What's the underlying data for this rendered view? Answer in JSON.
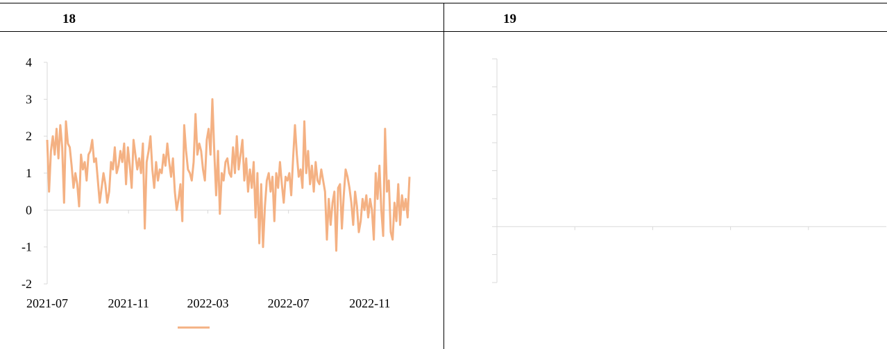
{
  "panels": [
    {
      "title": "18"
    },
    {
      "title": "19"
    }
  ],
  "chart_data": [
    {
      "type": "line",
      "title": "",
      "xlabel": "",
      "ylabel": "",
      "ylim": [
        -2,
        4
      ],
      "yticks": [
        "-2",
        "-1",
        "0",
        "1",
        "2",
        "3",
        "4"
      ],
      "xticks": [
        "2021-07",
        "2021-11",
        "2022-03",
        "2022-07",
        "2022-11"
      ],
      "xlim": [
        "2021-07-01",
        "2022-12-31"
      ],
      "legend": "bottom-center",
      "series": [
        {
          "color": "#f4b183",
          "x_start": "2021-07-01",
          "x_end": "2022-12-31",
          "values": [
            1.9,
            0.5,
            1.6,
            2.0,
            1.5,
            2.2,
            1.4,
            2.3,
            1.7,
            0.2,
            2.4,
            1.8,
            1.7,
            1.2,
            0.6,
            1.0,
            0.7,
            0.1,
            1.5,
            1.1,
            1.3,
            0.8,
            1.5,
            1.6,
            1.9,
            1.3,
            1.4,
            0.8,
            0.2,
            0.6,
            1.0,
            0.7,
            0.2,
            0.5,
            1.3,
            1.1,
            1.7,
            1.0,
            1.2,
            1.6,
            1.3,
            1.8,
            0.7,
            1.7,
            1.2,
            0.6,
            1.9,
            1.5,
            1.1,
            1.4,
            1.0,
            1.8,
            -0.5,
            1.3,
            1.6,
            2.0,
            1.1,
            0.6,
            1.3,
            0.8,
            1.1,
            1.0,
            1.5,
            1.2,
            1.8,
            1.3,
            0.9,
            1.4,
            0.5,
            0.0,
            0.3,
            0.7,
            -0.3,
            2.3,
            1.6,
            1.1,
            1.0,
            0.8,
            1.3,
            2.6,
            1.5,
            1.8,
            1.6,
            1.1,
            0.8,
            1.9,
            2.2,
            1.5,
            3.0,
            1.6,
            0.4,
            1.6,
            -0.1,
            1.0,
            0.8,
            1.3,
            1.4,
            1.0,
            0.9,
            1.7,
            1.0,
            2.0,
            1.1,
            1.5,
            1.9,
            0.8,
            1.4,
            0.5,
            1.1,
            0.6,
            1.3,
            -0.2,
            1.0,
            -0.9,
            0.7,
            -1.0,
            0.1,
            0.8,
            1.0,
            0.5,
            0.9,
            -0.3,
            1.0,
            0.6,
            1.3,
            0.7,
            0.2,
            0.9,
            0.8,
            1.0,
            0.4,
            1.4,
            2.3,
            1.5,
            0.9,
            1.1,
            0.6,
            2.4,
            1.0,
            1.6,
            0.7,
            1.2,
            0.5,
            1.3,
            0.8,
            0.7,
            1.1,
            0.8,
            0.5,
            -0.8,
            0.3,
            -0.4,
            0.2,
            0.5,
            -1.1,
            0.6,
            0.7,
            -0.5,
            0.4,
            1.1,
            0.9,
            0.6,
            0.2,
            -0.4,
            0.5,
            0.1,
            -0.6,
            -0.3,
            0.3,
            0.0,
            0.4,
            -0.2,
            0.3,
            0.0,
            -0.8,
            1.0,
            0.3,
            1.2,
            0.0,
            -0.7,
            2.2,
            0.5,
            0.8,
            -0.6,
            -0.8,
            0.2,
            -0.3,
            0.7,
            -0.4,
            0.4,
            0.0,
            0.3,
            -0.2,
            0.9
          ]
        }
      ]
    },
    {
      "type": "line",
      "title": "",
      "xlabel": "",
      "ylabel": "",
      "series": []
    }
  ]
}
